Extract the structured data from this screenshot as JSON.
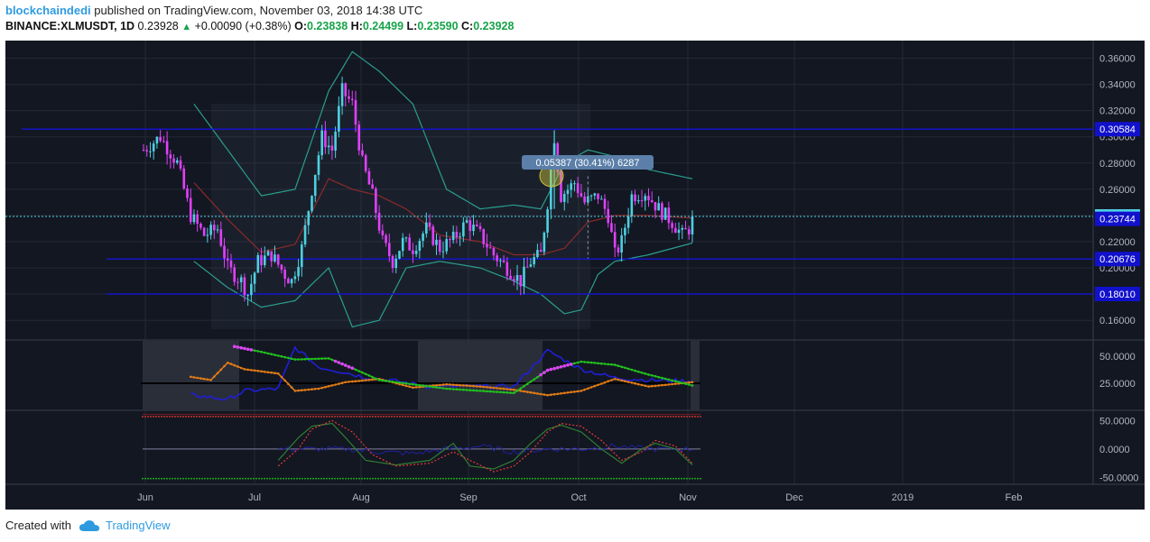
{
  "header": {
    "author": "blockchaindedi",
    "published_text": "published on TradingView.com, November 03, 2018 14:38 UTC",
    "symbol": "BINANCE:XLMUSDT, 1D",
    "last": "0.23928",
    "change": "+0.00090 (+0.38%)",
    "open_label": "O:",
    "open": "0.23838",
    "high_label": "H:",
    "high": "0.24499",
    "low_label": "L:",
    "low": "0.23590",
    "close_label": "C:",
    "close": "0.23928"
  },
  "footer": {
    "created_with": "Created with",
    "brand": "TradingView",
    "logo_icon": "cloud-logo-icon"
  },
  "colors": {
    "background": "#131722",
    "grid": "#242836",
    "axis_text": "#b2b5be",
    "candle_up": "#4dd0e1",
    "candle_down": "#e040fb",
    "bb_band": "#2a9d8f",
    "bb_basis": "#8b2a2a",
    "hline": "#1414c8",
    "tag_bg": "#1111cc",
    "adx": "#1f1fd6",
    "di_plus": "#22c01e",
    "di_minus": "#e07b16",
    "di_highlight": "#e040fb",
    "osc_green": "#2e7d32",
    "osc_red": "#e53935",
    "osc_zero": "#8080a0"
  },
  "chart_data": {
    "type": "candlestick",
    "x_axis_labels": [
      "Jun",
      "Jul",
      "Aug",
      "Sep",
      "Oct",
      "Nov",
      "Dec",
      "2019",
      "Feb"
    ],
    "price_axis": {
      "ylim": [
        0.145,
        0.37
      ],
      "tick_labels": [
        "0.36000",
        "0.34000",
        "0.32000",
        "0.30000",
        "0.28000",
        "0.26000",
        "0.24000",
        "0.22000",
        "0.20000",
        "0.18000",
        "0.16000"
      ],
      "tick_values": [
        0.36,
        0.34,
        0.32,
        0.3,
        0.28,
        0.26,
        0.24,
        0.22,
        0.2,
        0.18,
        0.16
      ]
    },
    "horizontal_lines": [
      {
        "value": 0.30584,
        "label": "0.30584"
      },
      {
        "value": 0.20676,
        "label": "0.20676"
      },
      {
        "value": 0.1801,
        "label": "0.18010"
      }
    ],
    "last_price": {
      "value": 0.23928,
      "label": "0.23928"
    },
    "basis_price": {
      "value": 0.23744,
      "label": "0.23744"
    },
    "measure_tooltip": "0.05387 (30.41%) 6287",
    "close_anchors": [
      [
        0,
        0.29
      ],
      [
        5,
        0.3
      ],
      [
        10,
        0.28
      ],
      [
        14,
        0.24
      ],
      [
        18,
        0.225
      ],
      [
        22,
        0.23
      ],
      [
        25,
        0.2
      ],
      [
        29,
        0.19
      ],
      [
        31,
        0.18
      ],
      [
        34,
        0.205
      ],
      [
        38,
        0.21
      ],
      [
        42,
        0.195
      ],
      [
        44,
        0.19
      ],
      [
        47,
        0.215
      ],
      [
        50,
        0.26
      ],
      [
        53,
        0.3
      ],
      [
        56,
        0.29
      ],
      [
        59,
        0.335
      ],
      [
        62,
        0.325
      ],
      [
        65,
        0.28
      ],
      [
        68,
        0.255
      ],
      [
        71,
        0.22
      ],
      [
        74,
        0.205
      ],
      [
        77,
        0.22
      ],
      [
        80,
        0.215
      ],
      [
        84,
        0.23
      ],
      [
        88,
        0.215
      ],
      [
        92,
        0.222
      ],
      [
        96,
        0.235
      ],
      [
        100,
        0.225
      ],
      [
        104,
        0.21
      ],
      [
        108,
        0.2
      ],
      [
        112,
        0.19
      ],
      [
        115,
        0.205
      ],
      [
        118,
        0.21
      ],
      [
        120,
        0.25
      ],
      [
        122,
        0.3
      ],
      [
        124,
        0.255
      ],
      [
        128,
        0.265
      ],
      [
        131,
        0.25
      ],
      [
        135,
        0.255
      ],
      [
        138,
        0.24
      ],
      [
        140,
        0.21
      ],
      [
        142,
        0.22
      ],
      [
        145,
        0.255
      ],
      [
        149,
        0.258
      ],
      [
        153,
        0.245
      ],
      [
        157,
        0.235
      ],
      [
        160,
        0.225
      ],
      [
        162,
        0.23
      ],
      [
        163,
        0.23928
      ]
    ],
    "bb_upper_anchors": [
      [
        15,
        0.325
      ],
      [
        25,
        0.29
      ],
      [
        35,
        0.255
      ],
      [
        45,
        0.26
      ],
      [
        55,
        0.335
      ],
      [
        62,
        0.365
      ],
      [
        70,
        0.35
      ],
      [
        80,
        0.325
      ],
      [
        90,
        0.26
      ],
      [
        100,
        0.245
      ],
      [
        110,
        0.248
      ],
      [
        118,
        0.245
      ],
      [
        125,
        0.28
      ],
      [
        132,
        0.29
      ],
      [
        140,
        0.285
      ],
      [
        150,
        0.275
      ],
      [
        163,
        0.268
      ]
    ],
    "bb_lower_anchors": [
      [
        15,
        0.205
      ],
      [
        25,
        0.185
      ],
      [
        35,
        0.17
      ],
      [
        45,
        0.175
      ],
      [
        55,
        0.2
      ],
      [
        62,
        0.155
      ],
      [
        70,
        0.16
      ],
      [
        78,
        0.2
      ],
      [
        88,
        0.205
      ],
      [
        100,
        0.2
      ],
      [
        110,
        0.19
      ],
      [
        118,
        0.18
      ],
      [
        125,
        0.165
      ],
      [
        130,
        0.168
      ],
      [
        135,
        0.195
      ],
      [
        140,
        0.205
      ],
      [
        150,
        0.21
      ],
      [
        163,
        0.219
      ]
    ],
    "bb_basis_anchors": [
      [
        15,
        0.265
      ],
      [
        25,
        0.237
      ],
      [
        35,
        0.212
      ],
      [
        45,
        0.218
      ],
      [
        55,
        0.268
      ],
      [
        62,
        0.26
      ],
      [
        70,
        0.255
      ],
      [
        78,
        0.245
      ],
      [
        88,
        0.225
      ],
      [
        100,
        0.22
      ],
      [
        110,
        0.21
      ],
      [
        118,
        0.21
      ],
      [
        125,
        0.215
      ],
      [
        132,
        0.235
      ],
      [
        140,
        0.24
      ],
      [
        150,
        0.24
      ],
      [
        163,
        0.238
      ]
    ],
    "dmi_panel": {
      "tick_labels": [
        "50.0000",
        "25.0000"
      ],
      "tick_values": [
        50,
        25
      ],
      "ylim": [
        0,
        65
      ],
      "adx_anchors": [
        [
          15,
          14
        ],
        [
          25,
          10
        ],
        [
          30,
          18
        ],
        [
          40,
          20
        ],
        [
          45,
          58
        ],
        [
          52,
          40
        ],
        [
          60,
          35
        ],
        [
          65,
          31
        ],
        [
          75,
          27
        ],
        [
          85,
          22
        ],
        [
          90,
          22
        ],
        [
          100,
          22
        ],
        [
          110,
          22
        ],
        [
          120,
          55
        ],
        [
          130,
          38
        ],
        [
          140,
          30
        ],
        [
          150,
          28
        ],
        [
          163,
          27
        ]
      ],
      "di_plus_anchors": [
        [
          27,
          59
        ],
        [
          35,
          54
        ],
        [
          45,
          47
        ],
        [
          55,
          48
        ],
        [
          62,
          39
        ],
        [
          70,
          28
        ],
        [
          80,
          24
        ],
        [
          90,
          20
        ],
        [
          100,
          18
        ],
        [
          110,
          16
        ],
        [
          120,
          37
        ],
        [
          130,
          45
        ],
        [
          140,
          42
        ],
        [
          150,
          33
        ],
        [
          163,
          23
        ]
      ],
      "di_minus_anchors": [
        [
          14,
          31
        ],
        [
          20,
          28
        ],
        [
          25,
          44
        ],
        [
          30,
          38
        ],
        [
          40,
          34
        ],
        [
          45,
          18
        ],
        [
          52,
          20
        ],
        [
          60,
          26
        ],
        [
          70,
          29
        ],
        [
          80,
          21
        ],
        [
          90,
          24
        ],
        [
          100,
          22
        ],
        [
          110,
          19
        ],
        [
          120,
          14
        ],
        [
          130,
          18
        ],
        [
          140,
          29
        ],
        [
          150,
          22
        ],
        [
          163,
          26
        ]
      ]
    },
    "osc_panel": {
      "tick_labels": [
        "50.0000",
        "0.0000",
        "-50.0000"
      ],
      "tick_values": [
        50,
        0,
        -50
      ],
      "ylim": [
        -62,
        68
      ],
      "green_anchors": [
        [
          40,
          -20
        ],
        [
          46,
          20
        ],
        [
          50,
          40
        ],
        [
          56,
          45
        ],
        [
          60,
          20
        ],
        [
          66,
          -20
        ],
        [
          75,
          -28
        ],
        [
          85,
          -20
        ],
        [
          92,
          10
        ],
        [
          97,
          -30
        ],
        [
          104,
          -35
        ],
        [
          110,
          -20
        ],
        [
          115,
          10
        ],
        [
          120,
          35
        ],
        [
          124,
          42
        ],
        [
          130,
          30
        ],
        [
          136,
          0
        ],
        [
          142,
          -25
        ],
        [
          148,
          0
        ],
        [
          152,
          10
        ],
        [
          158,
          0
        ],
        [
          163,
          -28
        ]
      ],
      "red_anchors": [
        [
          40,
          -30
        ],
        [
          46,
          0
        ],
        [
          50,
          35
        ],
        [
          56,
          50
        ],
        [
          62,
          30
        ],
        [
          68,
          -10
        ],
        [
          75,
          -30
        ],
        [
          85,
          -25
        ],
        [
          92,
          -5
        ],
        [
          97,
          -20
        ],
        [
          104,
          -40
        ],
        [
          110,
          -30
        ],
        [
          115,
          -5
        ],
        [
          120,
          30
        ],
        [
          124,
          45
        ],
        [
          130,
          40
        ],
        [
          136,
          15
        ],
        [
          142,
          -20
        ],
        [
          148,
          -5
        ],
        [
          152,
          15
        ],
        [
          158,
          5
        ],
        [
          163,
          -25
        ]
      ],
      "blue_anchors": [
        [
          40,
          0
        ],
        [
          60,
          0
        ],
        [
          70,
          -5
        ],
        [
          80,
          -8
        ],
        [
          90,
          0
        ],
        [
          100,
          5
        ],
        [
          110,
          -5
        ],
        [
          120,
          0
        ],
        [
          130,
          0
        ],
        [
          140,
          5
        ],
        [
          150,
          0
        ],
        [
          163,
          0
        ]
      ]
    }
  }
}
